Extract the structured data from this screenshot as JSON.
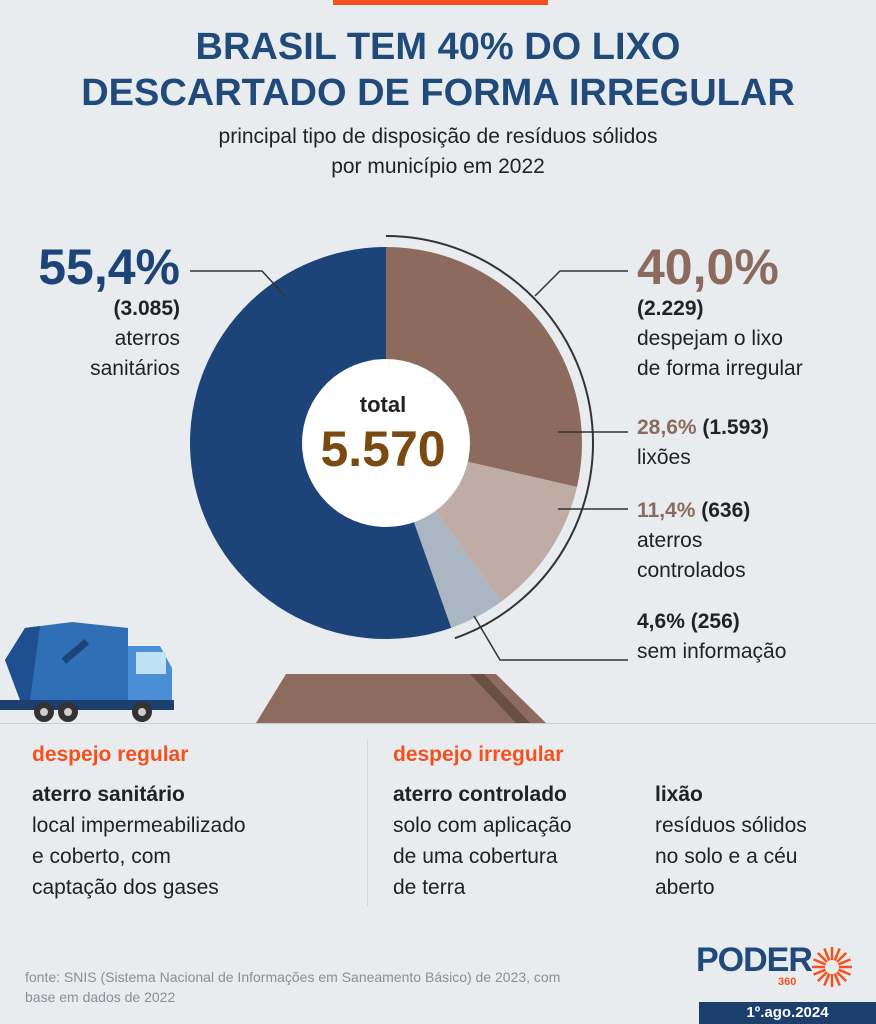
{
  "header": {
    "title_line1": "BRASIL TEM 40% DO LIXO",
    "title_line2": "DESCARTADO DE FORMA IRREGULAR",
    "subtitle_line1": "principal tipo de disposição de resíduos sólidos",
    "subtitle_line2": "por município em 2022"
  },
  "center": {
    "label": "total",
    "value": "5.570"
  },
  "labels": {
    "aterros_sanitarios": {
      "pct": "55,4%",
      "count": "(3.085)",
      "text1": "aterros",
      "text2": "sanitários"
    },
    "irregular": {
      "pct": "40,0%",
      "count": "(2.229)",
      "text1": "despejam o lixo",
      "text2": "de forma irregular"
    },
    "lixoes": {
      "pct": "28,6%",
      "count": "(1.593)",
      "text1": "lixões"
    },
    "aterros_controlados": {
      "pct": "11,4%",
      "count": "(636)",
      "text1": "aterros",
      "text2": "controlados"
    },
    "sem_informacao": {
      "pct": "4,6%",
      "count": "(256)",
      "text1": "sem informação"
    }
  },
  "legend": {
    "regular_heading": "despejo regular",
    "regular_term": "aterro sanitário",
    "regular_desc1": "local impermeabilizado",
    "regular_desc2": "e coberto, com",
    "regular_desc3": "captação dos gases",
    "irregular_heading": "despejo irregular",
    "controlado_term": "aterro controlado",
    "controlado_desc1": "solo com aplicação",
    "controlado_desc2": "de uma cobertura",
    "controlado_desc3": "de terra",
    "lixao_term": "lixão",
    "lixao_desc1": "resíduos sólidos",
    "lixao_desc2": "no solo e a céu",
    "lixao_desc3": "aberto"
  },
  "footer": {
    "source_line1": "fonte: SNIS (Sistema Nacional de Informações em Saneamento Básico) de 2023, com",
    "source_line2": "base em dados de 2022",
    "logo_text": "PODER",
    "logo_sub": "360",
    "date": "1º.ago.2024"
  },
  "colors": {
    "title": "#1f4a7a",
    "accent": "#f4511e",
    "sanitario": "#1c4478",
    "lixoes": "#8c6b5e",
    "controlados": "#bfada5",
    "sem_info": "#aab7c2"
  },
  "chart_data": {
    "type": "pie",
    "categories": [
      "lixões",
      "aterros controlados",
      "sem informação",
      "aterros sanitários"
    ],
    "values": [
      28.6,
      11.4,
      4.6,
      55.4
    ],
    "counts": [
      1593,
      636,
      256,
      3085
    ],
    "total": 5570
  }
}
